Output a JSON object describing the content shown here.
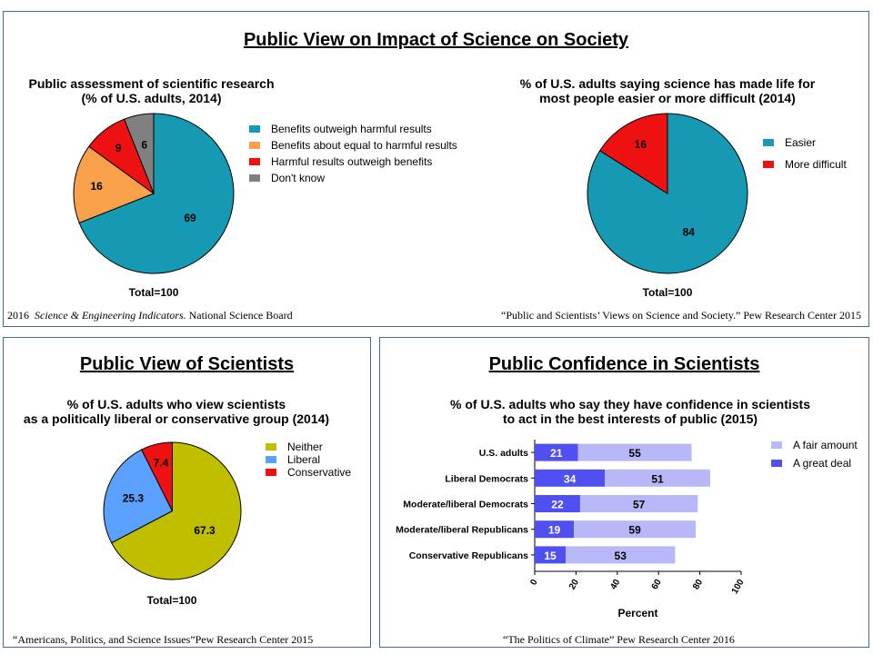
{
  "top_panel": {
    "title": "Public View on Impact of Science on Society",
    "left_source_year": "2016",
    "left_source_italic": "Science & Engineering Indicators.",
    "left_source_rest": "National Science Board",
    "right_source": "“Public and Scientists’ Views on Science and Society.” Pew Research Center 2015"
  },
  "bl_panel": {
    "title": "Public View of Scientists",
    "source": "“Americans, Politics, and Science Issues”Pew Research Center 2015"
  },
  "br_panel": {
    "title": "Public Confidence in Scientists",
    "source": "“The Politics of Climate” Pew Research Center 2016"
  },
  "chart_data": [
    {
      "type": "pie",
      "title_line1": "Public assessment of scientific research",
      "title_line2": "(% of U.S. adults, 2014)",
      "total_label": "Total=100",
      "legend_placement": "right",
      "slices": [
        {
          "label": "Benefits outweigh harmful results",
          "value": 69,
          "color": "#1699b3"
        },
        {
          "label": "Benefits about equal to harmful results",
          "value": 16,
          "color": "#f9a04b"
        },
        {
          "label": "Harmful results outweigh benefits",
          "value": 9,
          "color": "#ee1111"
        },
        {
          "label": "Don't know",
          "value": 6,
          "color": "#808080"
        }
      ]
    },
    {
      "type": "pie",
      "title_line1": "% of  U.S. adults saying science has made life for",
      "title_line2": "most people easier or more difficult (2014)",
      "total_label": "Total=100",
      "legend_placement": "right",
      "slices": [
        {
          "label": "Easier",
          "value": 84,
          "color": "#1699b3"
        },
        {
          "label": "More difficult",
          "value": 16,
          "color": "#ee1111"
        }
      ]
    },
    {
      "type": "pie",
      "title_line1": "% of  U.S. adults who view scientists",
      "title_line2": "as a politically liberal or conservative group (2014)",
      "total_label": "Total=100",
      "legend_placement": "right",
      "slices": [
        {
          "label": "Neither",
          "value": 67.3,
          "color": "#bfbf00"
        },
        {
          "label": "Liberal",
          "value": 25.3,
          "color": "#5aa0ff"
        },
        {
          "label": "Conservative",
          "value": 7.4,
          "color": "#ee1111"
        }
      ]
    },
    {
      "type": "bar",
      "orientation": "horizontal",
      "stacked": true,
      "title_line1": "% of U.S. adults who say they have confidence in scientists",
      "title_line2": "to act in the best interests of public (2015)",
      "xlabel": "Percent",
      "xlim": [
        0,
        100
      ],
      "xticks": [
        0,
        20,
        40,
        60,
        80,
        100
      ],
      "legend_placement": "right",
      "categories": [
        "U.S. adults",
        "Liberal Democrats",
        "Moderate/liberal Democrats",
        "Moderate/liberal Republicans",
        "Conservative Republicans"
      ],
      "series": [
        {
          "name": "A great deal",
          "values": [
            21,
            34,
            22,
            19,
            15
          ],
          "color": "#5050f0"
        },
        {
          "name": "A fair amount",
          "values": [
            55,
            51,
            57,
            59,
            53
          ],
          "color": "#b8b8f8"
        }
      ],
      "legend_order": [
        "A fair amount",
        "A great deal"
      ]
    }
  ]
}
